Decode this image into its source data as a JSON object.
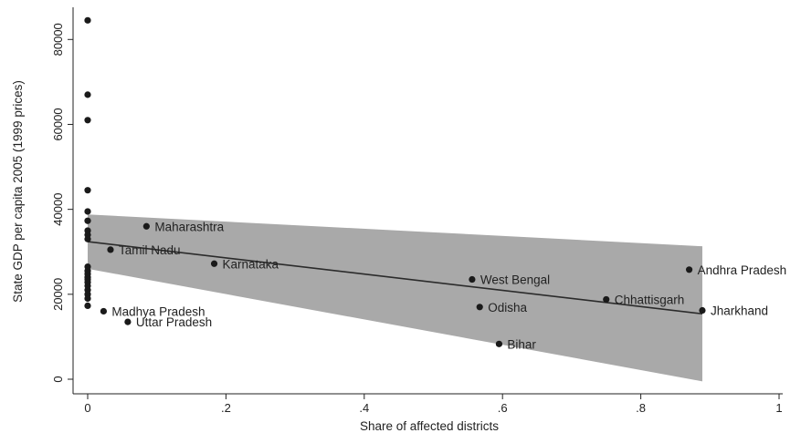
{
  "chart_data": {
    "type": "scatter",
    "title": "",
    "xlabel": "Share of affected districts",
    "ylabel": "State GDP per capita 2005 (1999 prices)",
    "xlim": [
      0,
      1
    ],
    "ylim": [
      0,
      85000
    ],
    "x_ticks": [
      0,
      0.2,
      0.4,
      0.6,
      0.8,
      1
    ],
    "x_tick_labels": [
      "0",
      ".2",
      ".4",
      ".6",
      ".8",
      "1"
    ],
    "y_ticks": [
      0,
      20000,
      40000,
      60000,
      80000
    ],
    "y_tick_labels": [
      "0",
      "20000",
      "40000",
      "60000",
      "80000"
    ],
    "grid": false,
    "points": [
      {
        "x": 0.0,
        "y": 84500,
        "label": ""
      },
      {
        "x": 0.0,
        "y": 67000,
        "label": ""
      },
      {
        "x": 0.0,
        "y": 61000,
        "label": ""
      },
      {
        "x": 0.0,
        "y": 44500,
        "label": ""
      },
      {
        "x": 0.0,
        "y": 39500,
        "label": ""
      },
      {
        "x": 0.0,
        "y": 37300,
        "label": ""
      },
      {
        "x": 0.0,
        "y": 35000,
        "label": ""
      },
      {
        "x": 0.0,
        "y": 34000,
        "label": ""
      },
      {
        "x": 0.0,
        "y": 33000,
        "label": ""
      },
      {
        "x": 0.0,
        "y": 26500,
        "label": ""
      },
      {
        "x": 0.0,
        "y": 25500,
        "label": ""
      },
      {
        "x": 0.0,
        "y": 24800,
        "label": ""
      },
      {
        "x": 0.0,
        "y": 24000,
        "label": ""
      },
      {
        "x": 0.0,
        "y": 23500,
        "label": ""
      },
      {
        "x": 0.0,
        "y": 22800,
        "label": ""
      },
      {
        "x": 0.0,
        "y": 22000,
        "label": ""
      },
      {
        "x": 0.0,
        "y": 21000,
        "label": ""
      },
      {
        "x": 0.0,
        "y": 20000,
        "label": ""
      },
      {
        "x": 0.0,
        "y": 19000,
        "label": ""
      },
      {
        "x": 0.0,
        "y": 17300,
        "label": ""
      },
      {
        "x": 0.085,
        "y": 36000,
        "label": "Maharashtra"
      },
      {
        "x": 0.033,
        "y": 30500,
        "label": "Tamil Nadu"
      },
      {
        "x": 0.183,
        "y": 27200,
        "label": "Karnataka"
      },
      {
        "x": 0.023,
        "y": 16000,
        "label": "Madhya Pradesh"
      },
      {
        "x": 0.058,
        "y": 13500,
        "label": "Uttar Pradesh"
      },
      {
        "x": 0.556,
        "y": 23500,
        "label": "West Bengal"
      },
      {
        "x": 0.567,
        "y": 17000,
        "label": "Odisha"
      },
      {
        "x": 0.595,
        "y": 8300,
        "label": "Bihar"
      },
      {
        "x": 0.75,
        "y": 18800,
        "label": "Chhattisgarh"
      },
      {
        "x": 0.87,
        "y": 25800,
        "label": "Andhra Pradesh"
      },
      {
        "x": 0.889,
        "y": 16200,
        "label": "Jharkhand"
      }
    ],
    "fit_line": {
      "x": [
        0,
        0.889
      ],
      "y": [
        32400,
        15400
      ]
    },
    "confidence_band": {
      "x": [
        0,
        0.889
      ],
      "upper": [
        38800,
        31300
      ],
      "lower": [
        26000,
        -500
      ]
    },
    "colors": {
      "points": "#1a1a1a",
      "band": "#a9a9a9",
      "line": "#2b2b2b",
      "axis": "#222222"
    }
  }
}
